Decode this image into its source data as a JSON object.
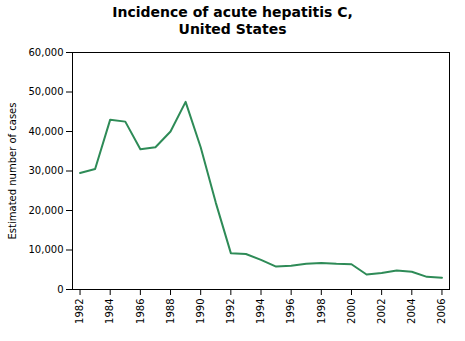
{
  "chart_data": {
    "type": "line",
    "title": "Incidence of acute hepatitis C,\nUnited States",
    "ylabel": "Estimated number of cases",
    "x": [
      1982,
      1983,
      1984,
      1985,
      1986,
      1987,
      1988,
      1989,
      1990,
      1991,
      1992,
      1993,
      1994,
      1995,
      1996,
      1997,
      1998,
      1999,
      2000,
      2001,
      2002,
      2003,
      2004,
      2005,
      2006
    ],
    "values": [
      29500,
      30500,
      43000,
      42500,
      35500,
      36000,
      40000,
      47500,
      36000,
      22000,
      9200,
      9000,
      7500,
      5800,
      6000,
      6500,
      6700,
      6500,
      6400,
      3800,
      4200,
      4800,
      4500,
      3200,
      3000
    ],
    "color": "#2e8b57",
    "xlim": [
      1981.5,
      2006.5
    ],
    "xticks": [
      1982,
      1984,
      1986,
      1988,
      1990,
      1992,
      1994,
      1996,
      1998,
      2000,
      2002,
      2004,
      2006
    ],
    "ylim": [
      0,
      60000
    ],
    "yticks": [
      0,
      {
        "value": 10000,
        "label": "10,000"
      },
      {
        "value": 20000,
        "label": "20,000"
      },
      {
        "value": 30000,
        "label": "30,000"
      },
      {
        "value": 40000,
        "label": "40,000"
      },
      {
        "value": 50000,
        "label": "50,000"
      },
      {
        "value": 60000,
        "label": "60,000"
      }
    ],
    "grid": false
  }
}
